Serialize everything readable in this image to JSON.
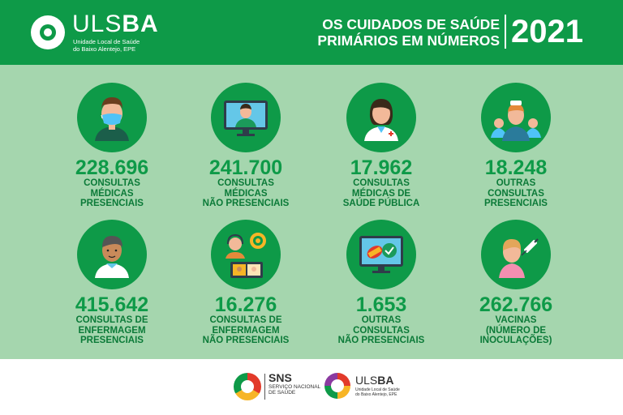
{
  "header": {
    "brand_light": "ULS",
    "brand_bold": "BA",
    "brand_sub_1": "Unidade Local de Saúde",
    "brand_sub_2": "do Baixo Alentejo, EPE",
    "title_1": "OS CUIDADOS DE SAÚDE",
    "title_2": "PRIMÁRIOS EM NÚMEROS",
    "year": "2021"
  },
  "stats": [
    {
      "value": "228.696",
      "label": [
        "CONSULTAS",
        "MÉDICAS",
        "PRESENCIAIS"
      ],
      "icon": "doctor-mask-icon"
    },
    {
      "value": "241.700",
      "label": [
        "CONSULTAS",
        "MÉDICAS",
        "NÃO PRESENCIAIS"
      ],
      "icon": "telemedicine-icon"
    },
    {
      "value": "17.962",
      "label": [
        "CONSULTAS",
        "MÉDICAS DE",
        "SAÚDE PÚBLICA"
      ],
      "icon": "female-doctor-icon"
    },
    {
      "value": "18.248",
      "label": [
        "OUTRAS",
        "CONSULTAS",
        "PRESENCIAIS"
      ],
      "icon": "nurses-team-icon"
    },
    {
      "value": "415.642",
      "label": [
        "CONSULTAS DE",
        "ENFERMAGEM",
        "PRESENCIAIS"
      ],
      "icon": "male-nurse-icon"
    },
    {
      "value": "16.276",
      "label": [
        "CONSULTAS DE",
        "ENFERMAGEM",
        "NÃO PRESENCIAIS"
      ],
      "icon": "call-center-icon"
    },
    {
      "value": "1.653",
      "label": [
        "OUTRAS",
        "CONSULTAS",
        "NÃO PRESENCIAIS"
      ],
      "icon": "monitor-pills-icon"
    },
    {
      "value": "262.766",
      "label": [
        "VACINAS",
        "(NÚMERO DE",
        "INOCULAÇÕES)"
      ],
      "icon": "vaccination-icon"
    }
  ],
  "footer": {
    "sns_title": "SNS",
    "sns_sub_1": "SERVIÇO NACIONAL",
    "sns_sub_2": "DE SAÚDE",
    "ulsba_light": "ULS",
    "ulsba_bold": "BA",
    "ulsba_sub_1": "Unidade Local de Saúde",
    "ulsba_sub_2": "do Baixo Alentejo, EPE"
  },
  "colors": {
    "primary_green": "#0e9a48",
    "background": "#a5d6ae",
    "label_green": "#0b7a38"
  }
}
